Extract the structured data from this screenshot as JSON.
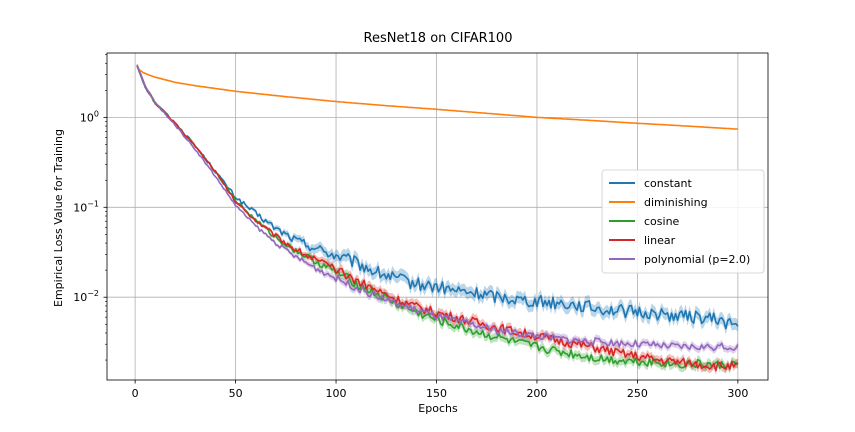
{
  "chart_data": {
    "type": "line",
    "title": "ResNet18 on CIFAR100",
    "xlabel": "Epochs",
    "ylabel": "Empirical Loss Value for Training",
    "yscale": "log",
    "xlim": [
      -14,
      315
    ],
    "ylim": [
      0.0012,
      5.2
    ],
    "x_ticks": [
      0,
      50,
      100,
      150,
      200,
      250,
      300
    ],
    "x_tick_labels": [
      "0",
      "50",
      "100",
      "150",
      "200",
      "250",
      "300"
    ],
    "y_ticks": [
      0.01,
      0.1,
      1
    ],
    "y_tick_labels": [
      {
        "base": "10",
        "exp": "−2"
      },
      {
        "base": "10",
        "exp": "−1"
      },
      {
        "base": "10",
        "exp": "0"
      }
    ],
    "grid": true,
    "legend_position": "center-right",
    "series": [
      {
        "name": "constant",
        "color": "#1f77b4",
        "noise": 0.07,
        "x": [
          1,
          5,
          10,
          20,
          30,
          40,
          50,
          60,
          70,
          80,
          90,
          100,
          110,
          120,
          130,
          140,
          150,
          160,
          170,
          180,
          190,
          200,
          210,
          220,
          230,
          240,
          250,
          260,
          270,
          280,
          290,
          300
        ],
        "y": [
          3.8,
          2.2,
          1.45,
          0.85,
          0.48,
          0.25,
          0.13,
          0.085,
          0.058,
          0.043,
          0.035,
          0.029,
          0.024,
          0.019,
          0.016,
          0.014,
          0.013,
          0.0117,
          0.011,
          0.0102,
          0.0095,
          0.009,
          0.0087,
          0.0082,
          0.0075,
          0.0071,
          0.0068,
          0.0065,
          0.0062,
          0.006,
          0.0056,
          0.0048
        ]
      },
      {
        "name": "diminishing",
        "color": "#ff7f0e",
        "noise": 0,
        "x": [
          1,
          2,
          4,
          7,
          10,
          20,
          30,
          50,
          75,
          100,
          125,
          150,
          175,
          200,
          225,
          250,
          275,
          300
        ],
        "y": [
          3.8,
          3.4,
          3.15,
          2.95,
          2.8,
          2.45,
          2.25,
          1.95,
          1.7,
          1.5,
          1.35,
          1.23,
          1.11,
          1.0,
          0.93,
          0.86,
          0.8,
          0.74
        ]
      },
      {
        "name": "cosine",
        "color": "#2ca02c",
        "noise": 0.05,
        "x": [
          1,
          5,
          10,
          20,
          30,
          40,
          50,
          60,
          70,
          80,
          90,
          100,
          110,
          120,
          130,
          140,
          150,
          160,
          170,
          180,
          190,
          200,
          210,
          220,
          230,
          240,
          250,
          260,
          270,
          280,
          290,
          300
        ],
        "y": [
          3.8,
          2.2,
          1.45,
          0.85,
          0.48,
          0.25,
          0.12,
          0.072,
          0.046,
          0.033,
          0.025,
          0.019,
          0.0143,
          0.011,
          0.0085,
          0.0068,
          0.0056,
          0.0048,
          0.0041,
          0.0036,
          0.0031,
          0.0028,
          0.0025,
          0.0023,
          0.0021,
          0.002,
          0.00195,
          0.0019,
          0.0018,
          0.0018,
          0.00175,
          0.0018
        ]
      },
      {
        "name": "linear",
        "color": "#d62728",
        "noise": 0.05,
        "x": [
          1,
          5,
          10,
          20,
          30,
          40,
          50,
          60,
          70,
          80,
          90,
          100,
          110,
          120,
          130,
          140,
          150,
          160,
          170,
          180,
          190,
          200,
          210,
          220,
          230,
          240,
          250,
          260,
          270,
          280,
          290,
          300
        ],
        "y": [
          3.8,
          2.2,
          1.45,
          0.85,
          0.48,
          0.25,
          0.115,
          0.072,
          0.048,
          0.034,
          0.026,
          0.02,
          0.0155,
          0.012,
          0.0095,
          0.0078,
          0.0067,
          0.0059,
          0.0052,
          0.0046,
          0.0041,
          0.0037,
          0.0033,
          0.003,
          0.0027,
          0.0024,
          0.0022,
          0.002,
          0.0019,
          0.0018,
          0.0017,
          0.0017
        ]
      },
      {
        "name": "polynomial (p=2.0)",
        "color": "#9467bd",
        "noise": 0.04,
        "x": [
          1,
          5,
          10,
          20,
          30,
          40,
          50,
          60,
          70,
          80,
          90,
          100,
          110,
          120,
          130,
          140,
          150,
          160,
          170,
          180,
          190,
          200,
          210,
          220,
          230,
          240,
          250,
          260,
          270,
          280,
          290,
          300
        ],
        "y": [
          3.8,
          2.2,
          1.45,
          0.82,
          0.44,
          0.22,
          0.105,
          0.062,
          0.04,
          0.028,
          0.021,
          0.0163,
          0.0128,
          0.0103,
          0.0085,
          0.0072,
          0.0062,
          0.0054,
          0.0048,
          0.0043,
          0.004,
          0.0037,
          0.0035,
          0.0033,
          0.0032,
          0.0031,
          0.003,
          0.0029,
          0.0028,
          0.0028,
          0.0028,
          0.0028
        ]
      }
    ]
  }
}
